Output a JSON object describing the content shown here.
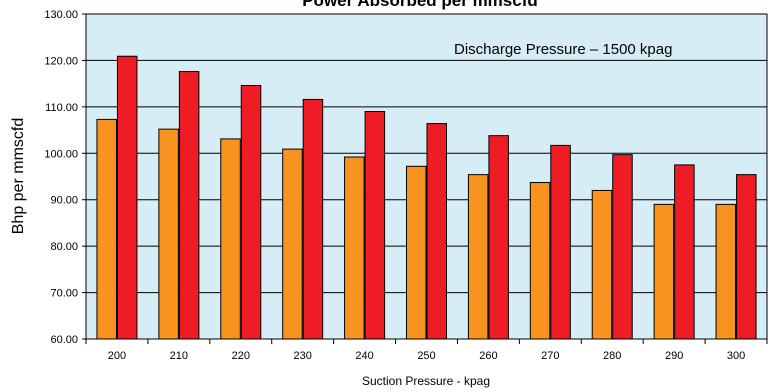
{
  "chart_data": {
    "type": "bar",
    "title": "Power Absorbed per mmscfd",
    "xlabel": "Suction Pressure - kpag",
    "ylabel": "Bhp per mmscfd",
    "annotation": "Discharge Pressure – 1500 kpag",
    "categories": [
      "200",
      "210",
      "220",
      "230",
      "240",
      "250",
      "260",
      "270",
      "280",
      "290",
      "300"
    ],
    "series": [
      {
        "values": [
          107.3,
          105.2,
          103.1,
          100.9,
          99.2,
          97.2,
          95.4,
          93.7,
          92.0,
          89.0,
          89.0
        ],
        "color": "#F7931E"
      },
      {
        "values": [
          120.9,
          117.6,
          114.6,
          111.6,
          109.0,
          106.4,
          103.8,
          101.7,
          99.7,
          97.5,
          95.4
        ],
        "color": "#EE1C25"
      }
    ],
    "ylim": [
      60,
      130
    ],
    "yticks": [
      "60.00",
      "70.00",
      "80.00",
      "90.00",
      "100.00",
      "110.00",
      "120.00",
      "130.00"
    ],
    "grid": true,
    "plot_background": "#D6EDF5"
  }
}
